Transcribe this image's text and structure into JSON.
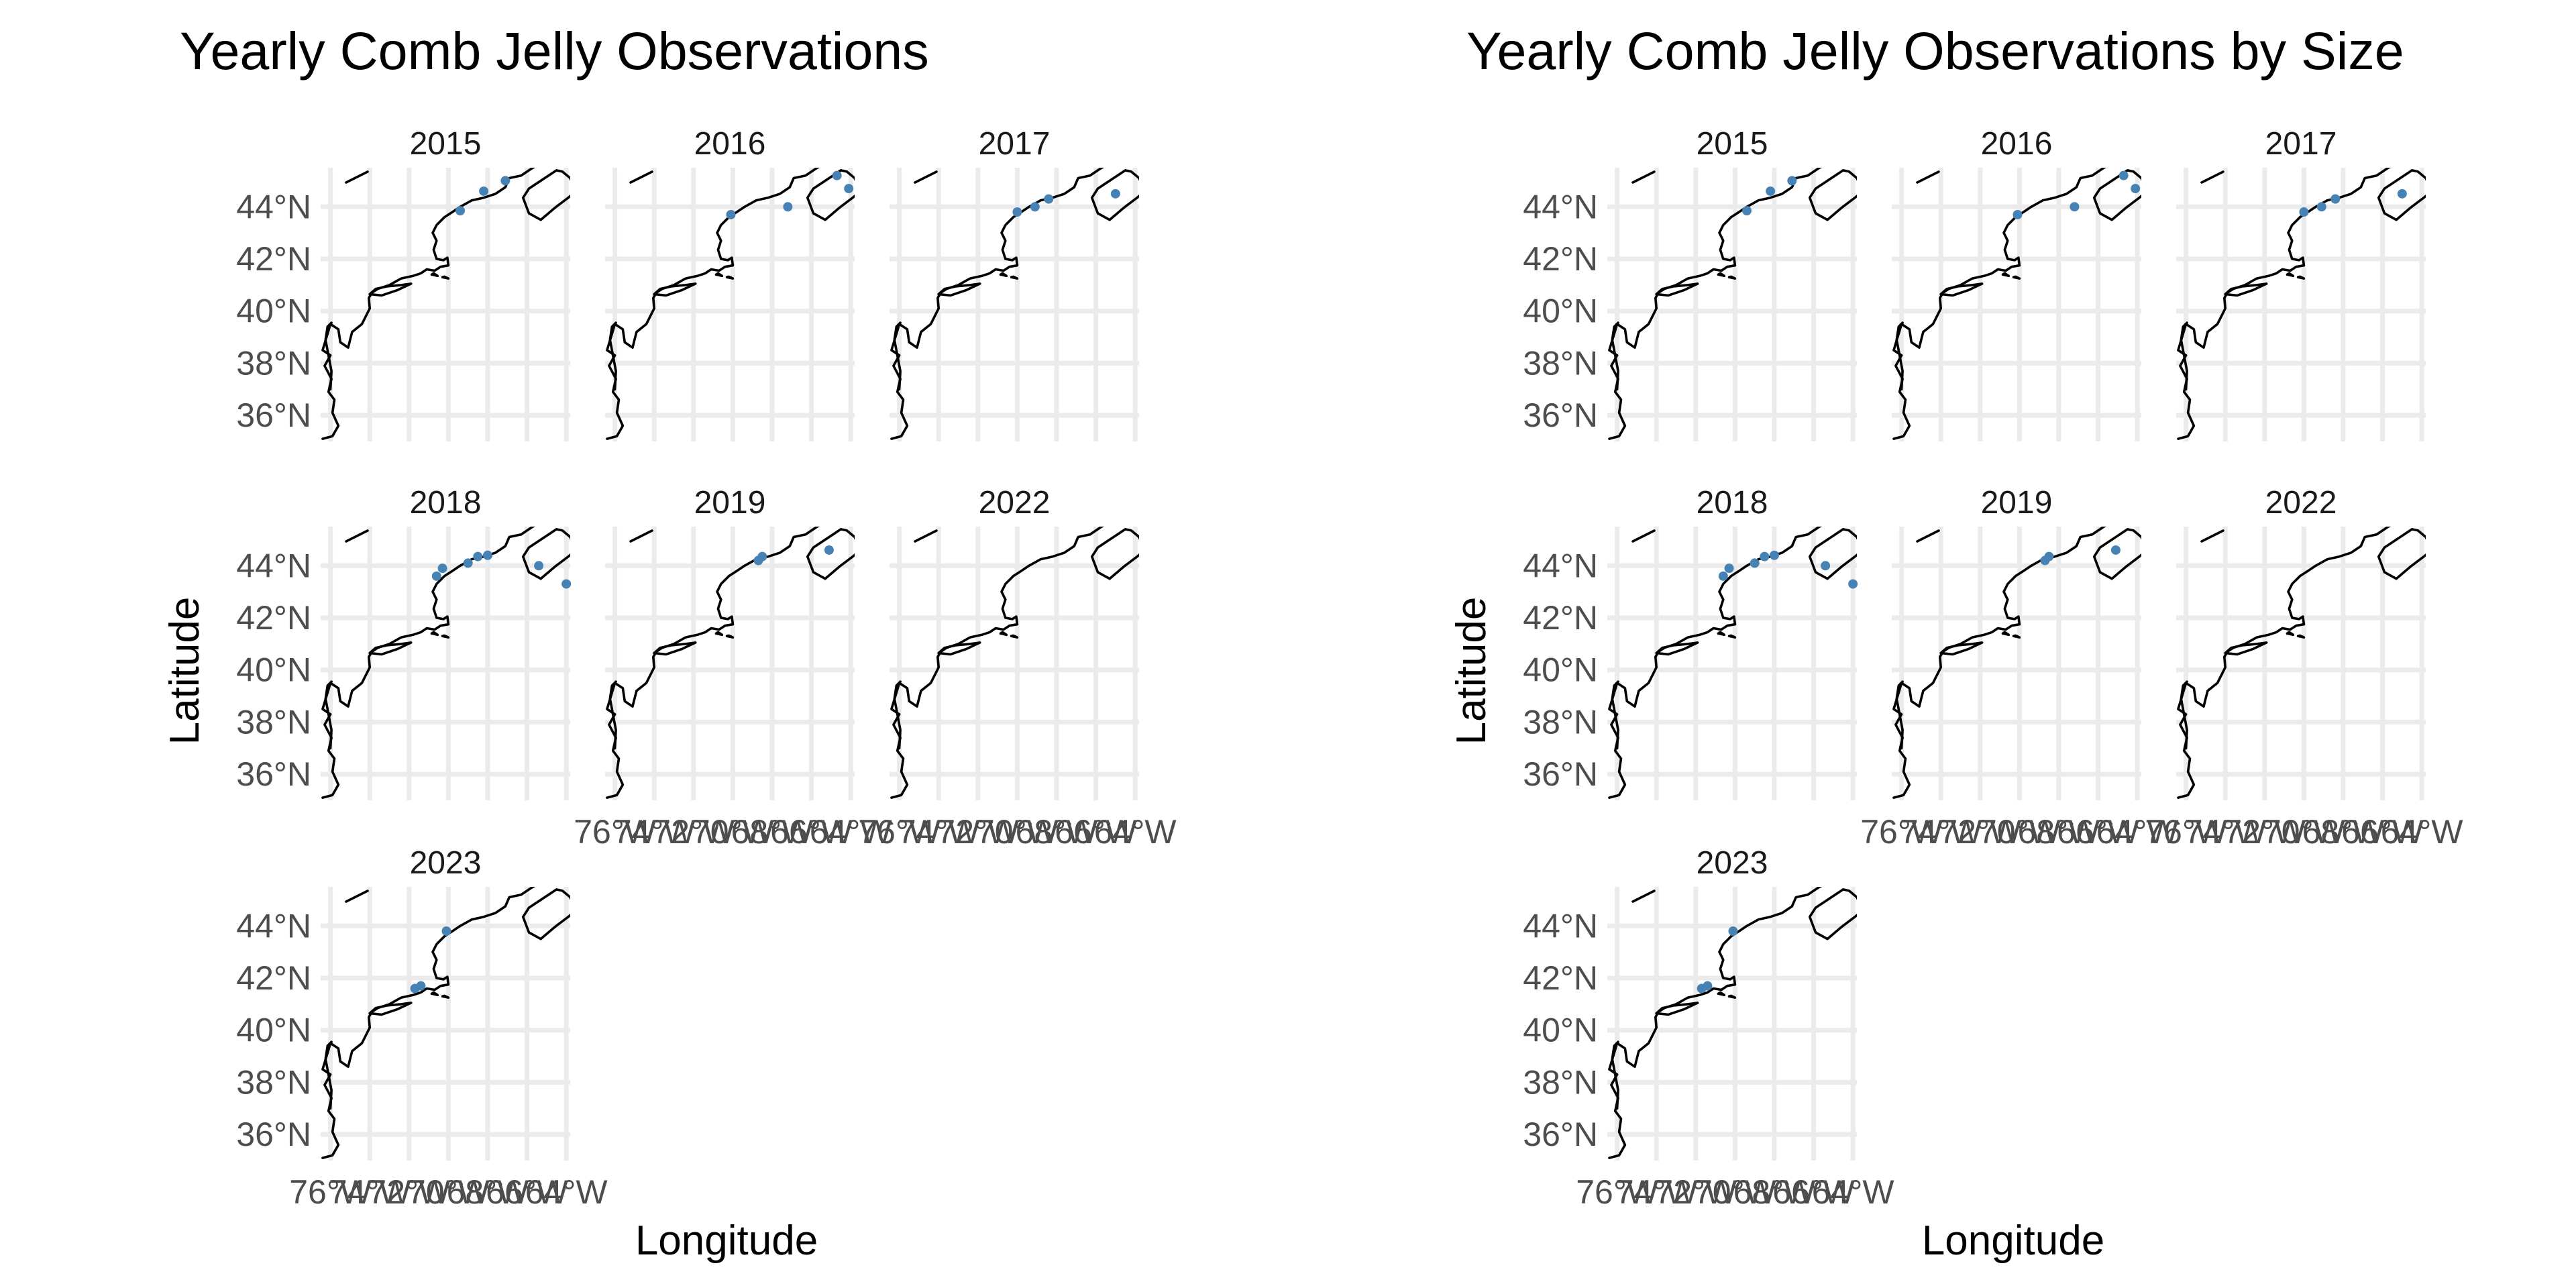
{
  "chart_data": [
    {
      "type": "scatter",
      "subtype": "faceted-map",
      "title": "Yearly Comb Jelly Observations",
      "xlabel": "Longitude",
      "ylabel": "Latitude",
      "xlim": [
        -76.5,
        -63.8
      ],
      "ylim": [
        35,
        45.5
      ],
      "x_ticks": [
        "76°W",
        "74°W",
        "72°W",
        "70°W",
        "68°W",
        "66°W",
        "64°W"
      ],
      "y_ticks": [
        "36°N",
        "38°N",
        "40°N",
        "42°N",
        "44°N"
      ],
      "grid": true,
      "legend": "none",
      "point_color": "#4682b4",
      "facets": [
        {
          "label": "2015",
          "points": [
            [
              -69.4,
              43.85
            ],
            [
              -68.2,
              44.6
            ],
            [
              -67.1,
              45.0
            ]
          ]
        },
        {
          "label": "2016",
          "points": [
            [
              -70.1,
              43.7
            ],
            [
              -67.2,
              44.0
            ],
            [
              -64.7,
              45.2
            ],
            [
              -64.1,
              44.7
            ]
          ]
        },
        {
          "label": "2017",
          "points": [
            [
              -70.0,
              43.8
            ],
            [
              -69.1,
              44.0
            ],
            [
              -68.4,
              44.3
            ],
            [
              -65.0,
              44.5
            ]
          ]
        },
        {
          "label": "2018",
          "points": [
            [
              -70.6,
              43.6
            ],
            [
              -70.3,
              43.9
            ],
            [
              -69.0,
              44.1
            ],
            [
              -68.5,
              44.35
            ],
            [
              -68.0,
              44.4
            ],
            [
              -65.4,
              44.0
            ],
            [
              -64.0,
              43.3
            ]
          ]
        },
        {
          "label": "2019",
          "points": [
            [
              -68.7,
              44.2
            ],
            [
              -68.5,
              44.35
            ],
            [
              -65.1,
              44.6
            ]
          ]
        },
        {
          "label": "2022",
          "points": []
        },
        {
          "label": "2023",
          "points": [
            [
              -71.7,
              41.6
            ],
            [
              -71.4,
              41.7
            ],
            [
              -70.1,
              43.8
            ]
          ]
        }
      ]
    },
    {
      "type": "scatter",
      "subtype": "faceted-map",
      "title": "Yearly Comb Jelly Observations by Size",
      "xlabel": "Longitude",
      "ylabel": "Latitude",
      "xlim": [
        -76.5,
        -63.8
      ],
      "ylim": [
        35,
        45.5
      ],
      "x_ticks": [
        "76°W",
        "74°W",
        "72°W",
        "70°W",
        "68°W",
        "66°W",
        "64°W"
      ],
      "y_ticks": [
        "36°N",
        "38°N",
        "40°N",
        "42°N",
        "44°N"
      ],
      "grid": true,
      "legend": "none",
      "point_color": "#4682b4",
      "facets": [
        {
          "label": "2015",
          "points": [
            [
              -69.4,
              43.85
            ],
            [
              -68.2,
              44.6
            ],
            [
              -67.1,
              45.0
            ]
          ]
        },
        {
          "label": "2016",
          "points": [
            [
              -70.1,
              43.7
            ],
            [
              -67.2,
              44.0
            ],
            [
              -64.7,
              45.2
            ],
            [
              -64.1,
              44.7
            ]
          ]
        },
        {
          "label": "2017",
          "points": [
            [
              -70.0,
              43.8
            ],
            [
              -69.1,
              44.0
            ],
            [
              -68.4,
              44.3
            ],
            [
              -65.0,
              44.5
            ]
          ]
        },
        {
          "label": "2018",
          "points": [
            [
              -70.6,
              43.6
            ],
            [
              -70.3,
              43.9
            ],
            [
              -69.0,
              44.1
            ],
            [
              -68.5,
              44.35
            ],
            [
              -68.0,
              44.4
            ],
            [
              -65.4,
              44.0
            ],
            [
              -64.0,
              43.3
            ]
          ]
        },
        {
          "label": "2019",
          "points": [
            [
              -68.7,
              44.2
            ],
            [
              -68.5,
              44.35
            ],
            [
              -65.1,
              44.6
            ]
          ]
        },
        {
          "label": "2022",
          "points": []
        },
        {
          "label": "2023",
          "points": [
            [
              -71.7,
              41.6
            ],
            [
              -71.4,
              41.7
            ],
            [
              -70.1,
              43.8
            ]
          ]
        }
      ]
    }
  ]
}
